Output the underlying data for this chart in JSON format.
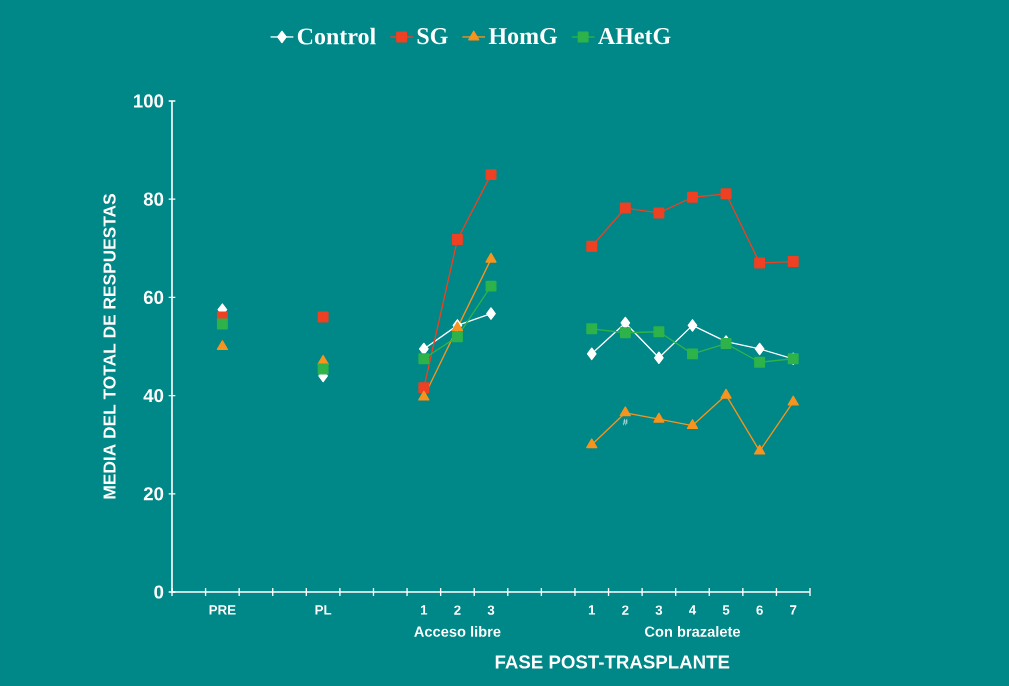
{
  "chart_data": {
    "type": "line",
    "ylabel": "MEDIA DEL TOTAL DE RESPUESTAS",
    "xlabel": "FASE POST-TRASPLANTE",
    "categories": [
      null,
      "PRE",
      null,
      null,
      "PL",
      null,
      null,
      "1",
      "2",
      "3",
      null,
      null,
      "1",
      "2",
      "3",
      "4",
      "5",
      "6",
      "7"
    ],
    "series": [
      {
        "name": "Control",
        "color": "#ffffff",
        "marker": "diamond",
        "values": [
          null,
          57.5,
          null,
          null,
          44,
          null,
          null,
          49.5,
          54.3,
          56.7,
          null,
          null,
          48.5,
          54.8,
          47.7,
          54.3,
          51,
          49.5,
          47.5
        ]
      },
      {
        "name": "SG",
        "color": "#ee4023",
        "marker": "square",
        "values": [
          null,
          56,
          null,
          null,
          56,
          null,
          null,
          41.6,
          71.8,
          85,
          null,
          null,
          70.4,
          78.2,
          77.2,
          80.4,
          81.1,
          67,
          67.3
        ]
      },
      {
        "name": "HomG",
        "color": "#f7941d",
        "marker": "triangle",
        "values": [
          null,
          50,
          null,
          null,
          47,
          null,
          null,
          39.7,
          53.8,
          67.8,
          null,
          null,
          30,
          36.5,
          35.2,
          33.9,
          40.1,
          28.7,
          38.7
        ]
      },
      {
        "name": "AHetG",
        "color": "#2db34a",
        "marker": "square",
        "values": [
          null,
          54.6,
          null,
          null,
          45.4,
          null,
          null,
          47.5,
          52,
          62.3,
          null,
          null,
          53.6,
          52.8,
          53,
          48.5,
          50.6,
          46.8,
          47.5
        ]
      }
    ],
    "ylim": [
      0,
      100
    ],
    "yticks": [
      0,
      20,
      40,
      60,
      80,
      100
    ],
    "legend": "top",
    "annotations": [
      "Acceso libre",
      "Con brazalete",
      "#"
    ]
  }
}
